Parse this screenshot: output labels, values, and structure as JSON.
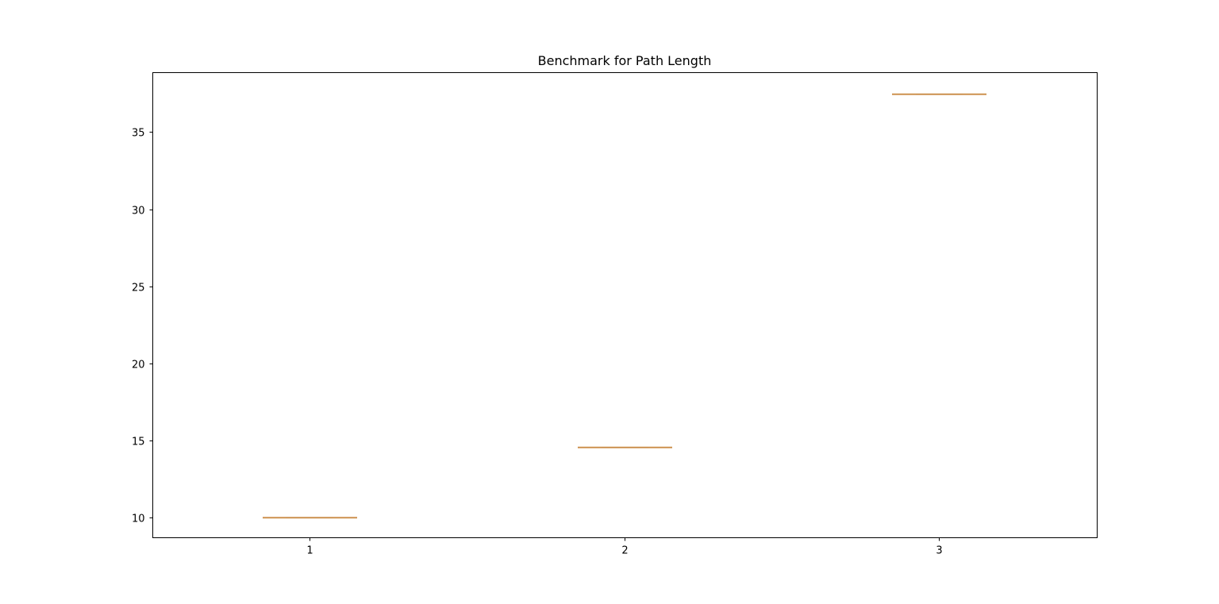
{
  "chart_data": {
    "type": "box",
    "title": "Benchmark for Path Length",
    "xlabel": "",
    "ylabel": "",
    "categories": [
      "1",
      "2",
      "3"
    ],
    "values": [
      10.0,
      14.55,
      37.45
    ],
    "ylim": [
      8.7,
      38.85
    ],
    "yticks": [
      10,
      15,
      20,
      25,
      30,
      35
    ],
    "xlim": [
      0.5,
      3.5
    ],
    "grid": false,
    "colors": {
      "median": "#d2924d",
      "box": "#000000",
      "axes": "#000000",
      "background": "#ffffff"
    }
  }
}
